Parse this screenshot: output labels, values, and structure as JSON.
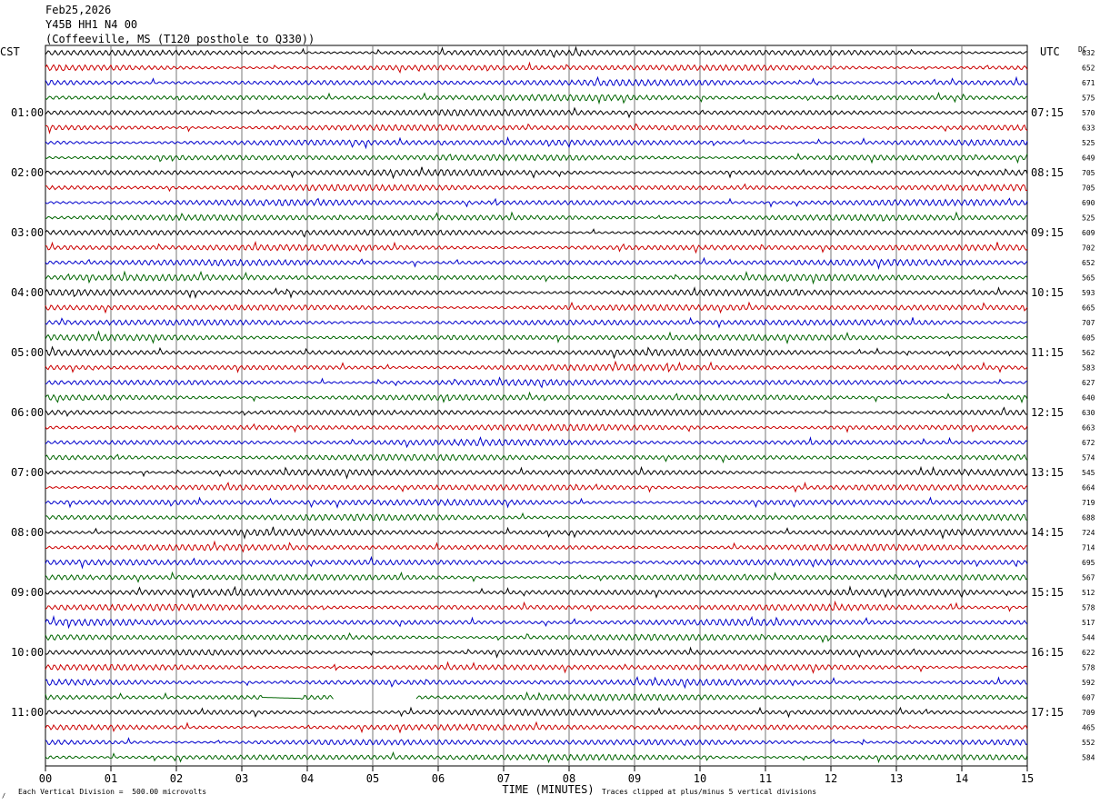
{
  "header": {
    "date": "Feb25,2026",
    "station": "Y45B HH1 N4 00",
    "location": "(Coffeeville, MS (T120 posthole to Q330))"
  },
  "chart_data": {
    "type": "line",
    "subtype": "helicorder",
    "left_timezone": "CST",
    "right_timezone": "UTC",
    "dc_label": "DC",
    "xlabel": "TIME (MINUTES)",
    "xlim": [
      0,
      15
    ],
    "x_ticks": [
      "00",
      "01",
      "02",
      "03",
      "04",
      "05",
      "06",
      "07",
      "08",
      "09",
      "10",
      "11",
      "12",
      "13",
      "14",
      "15"
    ],
    "grid": true,
    "colors": [
      "#000000",
      "#cc0000",
      "#0000cc",
      "#006600"
    ],
    "left_hour_labels": [
      "01:00",
      "02:00",
      "03:00",
      "04:00",
      "05:00",
      "06:00",
      "07:00",
      "08:00",
      "09:00",
      "10:00",
      "11:00"
    ],
    "right_hour_labels": [
      "07:15",
      "08:15",
      "09:15",
      "10:15",
      "11:15",
      "12:15",
      "13:15",
      "14:15",
      "15:15",
      "16:15",
      "17:15"
    ],
    "dc_offsets": [
      632,
      652,
      671,
      575,
      570,
      633,
      525,
      649,
      705,
      705,
      690,
      525,
      609,
      702,
      652,
      565,
      593,
      665,
      707,
      605,
      562,
      583,
      627,
      640,
      630,
      663,
      672,
      574,
      545,
      664,
      719,
      688,
      724,
      714,
      695,
      567,
      512,
      578,
      517,
      544,
      622,
      578,
      592,
      607,
      709,
      465,
      552,
      584
    ],
    "trace_count": 48,
    "gap": {
      "trace_index": 43,
      "flat_from_minute": 3.3,
      "flat_to_minute": 3.9,
      "missing_from_minute": 4.4,
      "missing_to_minute": 5.65
    },
    "scale_note": "Each Vertical Division =  500.00 microvolts",
    "clip_note": "Traces clipped at plus/minus 5 vertical divisions"
  }
}
